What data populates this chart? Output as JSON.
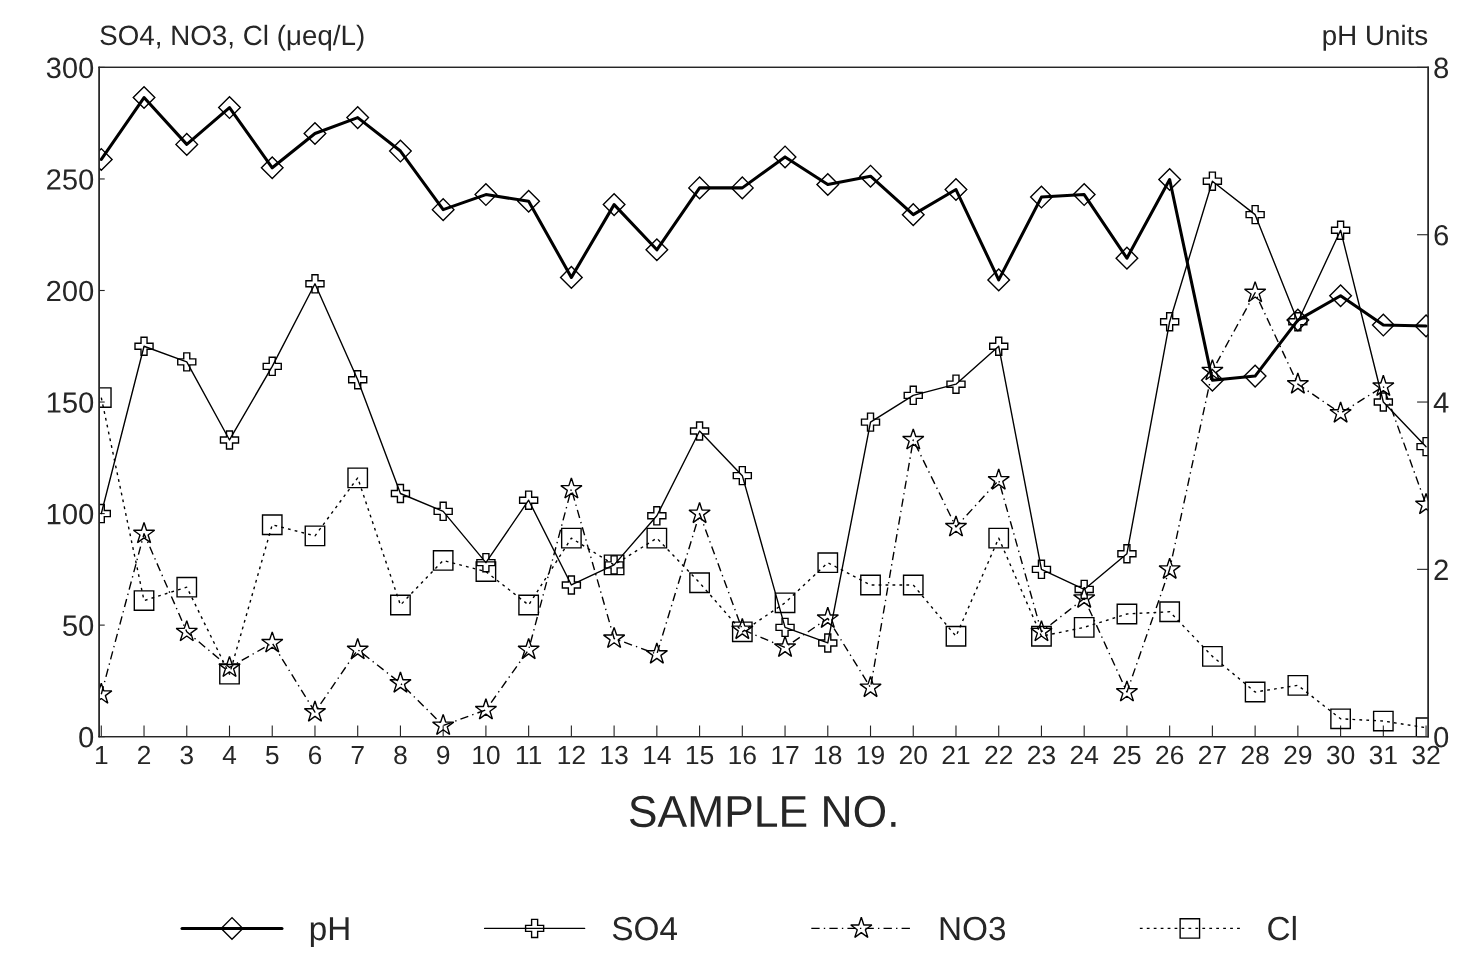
{
  "chart_data": {
    "type": "line",
    "xlabel": "SAMPLE NO.",
    "ylabel": "SO4, NO3, Cl (μeq/L)",
    "y2label": "pH Units",
    "categories": [
      "1",
      "2",
      "3",
      "4",
      "5",
      "6",
      "7",
      "8",
      "9",
      "10",
      "11",
      "12",
      "13",
      "14",
      "15",
      "16",
      "17",
      "18",
      "19",
      "20",
      "21",
      "22",
      "23",
      "24",
      "25",
      "26",
      "27",
      "28",
      "29",
      "30",
      "31",
      "32"
    ],
    "series": [
      {
        "name": "pH",
        "color": "#000000",
        "axis": "y2",
        "marker": "diamond",
        "line_style": "solid",
        "values": [
          6.9,
          7.64,
          7.08,
          7.52,
          6.8,
          7.21,
          7.4,
          7.0,
          6.3,
          6.48,
          6.4,
          5.49,
          6.36,
          5.82,
          6.56,
          6.56,
          6.93,
          6.6,
          6.7,
          6.24,
          6.54,
          5.46,
          6.45,
          6.48,
          5.72,
          6.66,
          4.26,
          4.31,
          4.98,
          5.27,
          4.92,
          4.91
        ]
      },
      {
        "name": "SO4",
        "color": "#000000",
        "marker": "cross",
        "line_style": "solid",
        "values": [
          100,
          175,
          168,
          133,
          166,
          203,
          160,
          109,
          101,
          78,
          106,
          68,
          77,
          99,
          137,
          117,
          49,
          42,
          141,
          153,
          158,
          175,
          75,
          66,
          82,
          186,
          249,
          234,
          186,
          227,
          150,
          130
        ]
      },
      {
        "name": "NO3",
        "color": "#000000",
        "marker": "star",
        "line_style": "dashed",
        "values": [
          19,
          91,
          47,
          31,
          42,
          11,
          39,
          24,
          5,
          12,
          39,
          111,
          44,
          37,
          100,
          48,
          40,
          53,
          22,
          133,
          94,
          115,
          47,
          62,
          20,
          75,
          164,
          199,
          158,
          145,
          157,
          104
        ]
      },
      {
        "name": "Cl",
        "color": "#000000",
        "marker": "square",
        "line_style": "dotted",
        "values": [
          152,
          61,
          67,
          28,
          95,
          90,
          116,
          59,
          79,
          74,
          59,
          89,
          77,
          89,
          69,
          47,
          60,
          78,
          68,
          68,
          45,
          89,
          45,
          49,
          55,
          56,
          36,
          20,
          23,
          8,
          7,
          4
        ]
      }
    ],
    "ylim": [
      0,
      300
    ],
    "yticks": [
      0,
      50,
      100,
      150,
      200,
      250,
      300
    ],
    "y2lim": [
      0,
      8
    ],
    "y2ticks": [
      0,
      2,
      4,
      6,
      8
    ],
    "grid": false,
    "legend": "bottom"
  }
}
